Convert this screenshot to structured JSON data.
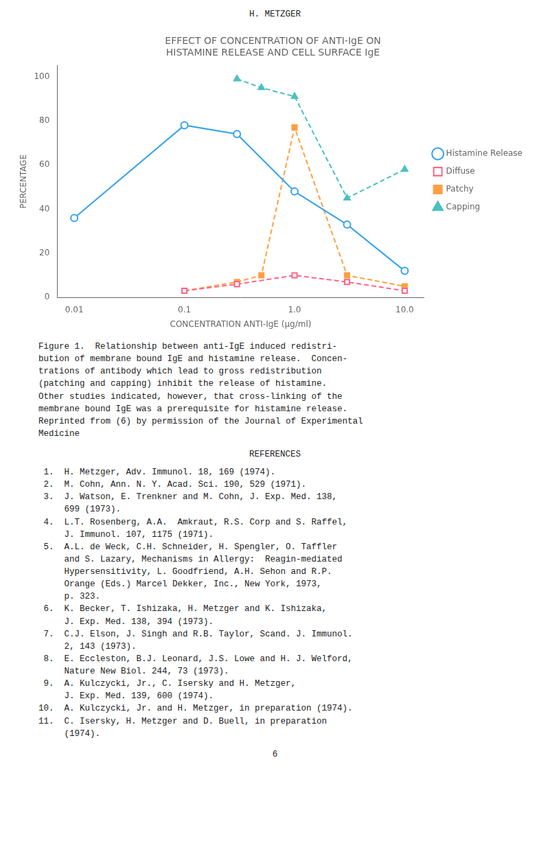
{
  "chart_data": {
    "type": "line",
    "title": [
      "EFFECT OF CONCENTRATION OF ANTI-IgE ON",
      "HISTAMINE RELEASE AND CELL SURFACE IgE"
    ],
    "xlabel": "CONCENTRATION ANTI-IgE (μg/ml)",
    "ylabel": "PERCENTAGE",
    "log": "x",
    "xlim": [
      0.007,
      15
    ],
    "xticks": [
      0.01,
      0.1,
      {
        "value": 1,
        "label": "1.0"
      },
      {
        "value": 10,
        "label": "10.0"
      }
    ],
    "ylim": [
      0,
      105
    ],
    "yticks": [
      0,
      20,
      40,
      60,
      80,
      100
    ],
    "grid": false,
    "legend": "right",
    "series": [
      {
        "name": "Histamine Release",
        "x": [
          0.01,
          0.1,
          0.3,
          1.0,
          3.0,
          10.0
        ],
        "values": [
          36,
          78,
          74,
          48,
          33,
          12
        ],
        "marker": "open circle",
        "line_style": "solid"
      },
      {
        "name": "Diffuse",
        "x": [
          0.1,
          0.3,
          1.0,
          3.0,
          10.0
        ],
        "values": [
          3,
          6,
          10,
          7,
          3
        ],
        "marker": "open square",
        "line_style": "dashed"
      },
      {
        "name": "Patchy",
        "x": [
          0.1,
          0.3,
          0.5,
          1.0,
          3.0,
          10.0
        ],
        "values": [
          3,
          7,
          10,
          77,
          10,
          5
        ],
        "marker": "filled square",
        "line_style": "dashed"
      },
      {
        "name": "Capping",
        "x": [
          0.3,
          0.5,
          1.0,
          3.0,
          10.0
        ],
        "values": [
          99,
          95,
          91,
          45,
          58
        ],
        "marker": "filled triangle",
        "line_style": "dashed"
      }
    ],
    "annotations": [
      "H. METZGER",
      "Figure 1.  Relationship between anti-IgE induced redistri-\nbution of membrane bound IgE and histamine release.  Concen-\ntrations of antibody which lead to gross redistribution\n(patching and capping) inhibit the release of histamine.\nOther studies indicated, however, that cross-linking of the\nmembrane bound IgE was a prerequisite for histamine release.\nReprinted from (6) by permission of the Journal of Experimental\nMedicine",
      "REFERENCES",
      " 1.  H. Metzger, Adv. Immunol. 18, 169 (1974).\n 2.  M. Cohn, Ann. N. Y. Acad. Sci. 190, 529 (1971).\n 3.  J. Watson, E. Trenkner and M. Cohn, J. Exp. Med. 138,\n     699 (1973).\n 4.  L.T. Rosenberg, A.A.  Amkraut, R.S. Corp and S. Raffel,\n     J. Immunol. 107, 1175 (1971).\n 5.  A.L. de Weck, C.H. Schneider, H. Spengler, O. Taffler\n     and S. Lazary, Mechanisms in Allergy:  Reagin-mediated\n     Hypersensitivity, L. Goodfriend, A.H. Sehon and R.P.\n     Orange (Eds.) Marcel Dekker, Inc., New York, 1973,\n     p. 323.\n 6.  K. Becker, T. Ishizaka, H. Metzger and K. Ishizaka,\n     J. Exp. Med. 138, 394 (1973).\n 7.  C.J. Elson, J. Singh and R.B. Taylor, Scand. J. Immunol.\n     2, 143 (1973).\n 8.  E. Eccleston, B.J. Leonard, J.S. Lowe and H. J. Welford,\n     Nature New Biol. 244, 73 (1973).\n 9.  A. Kulczycki, Jr., C. Isersky and H. Metzger,\n     J. Exp. Med. 139, 600 (1974).\n10.  A. Kulczycki, Jr. and H. Metzger, in preparation (1974).\n11.  C. Isersky, H. Metzger and D. Buell, in preparation\n     (1974).",
      "6"
    ]
  }
}
